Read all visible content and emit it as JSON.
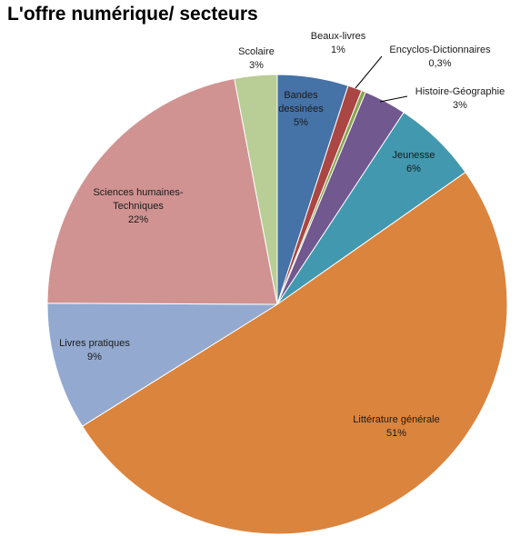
{
  "chart_data": {
    "type": "pie",
    "title": "L'offre numérique/ secteurs",
    "slices": [
      {
        "name": "Bandes dessinées",
        "label": [
          "Bandes",
          "dessinées"
        ],
        "pct_label": "5%",
        "value": 5,
        "color": "#4572a7"
      },
      {
        "name": "Beaux-livres",
        "label": [
          "Beaux-livres"
        ],
        "pct_label": "1%",
        "value": 1,
        "color": "#aa4643"
      },
      {
        "name": "Encyclos-Dictionnaires",
        "label": [
          "Encyclos-Dictionnaires"
        ],
        "pct_label": "0,3%",
        "value": 0.3,
        "color": "#89a54e"
      },
      {
        "name": "Histoire-Géographie",
        "label": [
          "Histoire-Géographie"
        ],
        "pct_label": "3%",
        "value": 3,
        "color": "#71588f"
      },
      {
        "name": "Jeunesse",
        "label": [
          "Jeunesse"
        ],
        "pct_label": "6%",
        "value": 6,
        "color": "#4198af"
      },
      {
        "name": "Littérature générale",
        "label": [
          "Littérature générale"
        ],
        "pct_label": "51%",
        "value": 51,
        "color": "#db843d"
      },
      {
        "name": "Livres pratiques",
        "label": [
          "Livres pratiques"
        ],
        "pct_label": "9%",
        "value": 9,
        "color": "#93a9cf"
      },
      {
        "name": "Sciences humaines-Techniques",
        "label": [
          "Sciences humaines-",
          "Techniques"
        ],
        "pct_label": "22%",
        "value": 22,
        "color": "#d09392"
      },
      {
        "name": "Scolaire",
        "label": [
          "Scolaire"
        ],
        "pct_label": "3%",
        "value": 3,
        "color": "#b9cd96"
      }
    ],
    "start_angle": "12 o'clock",
    "direction": "clockwise",
    "legend": "none"
  }
}
